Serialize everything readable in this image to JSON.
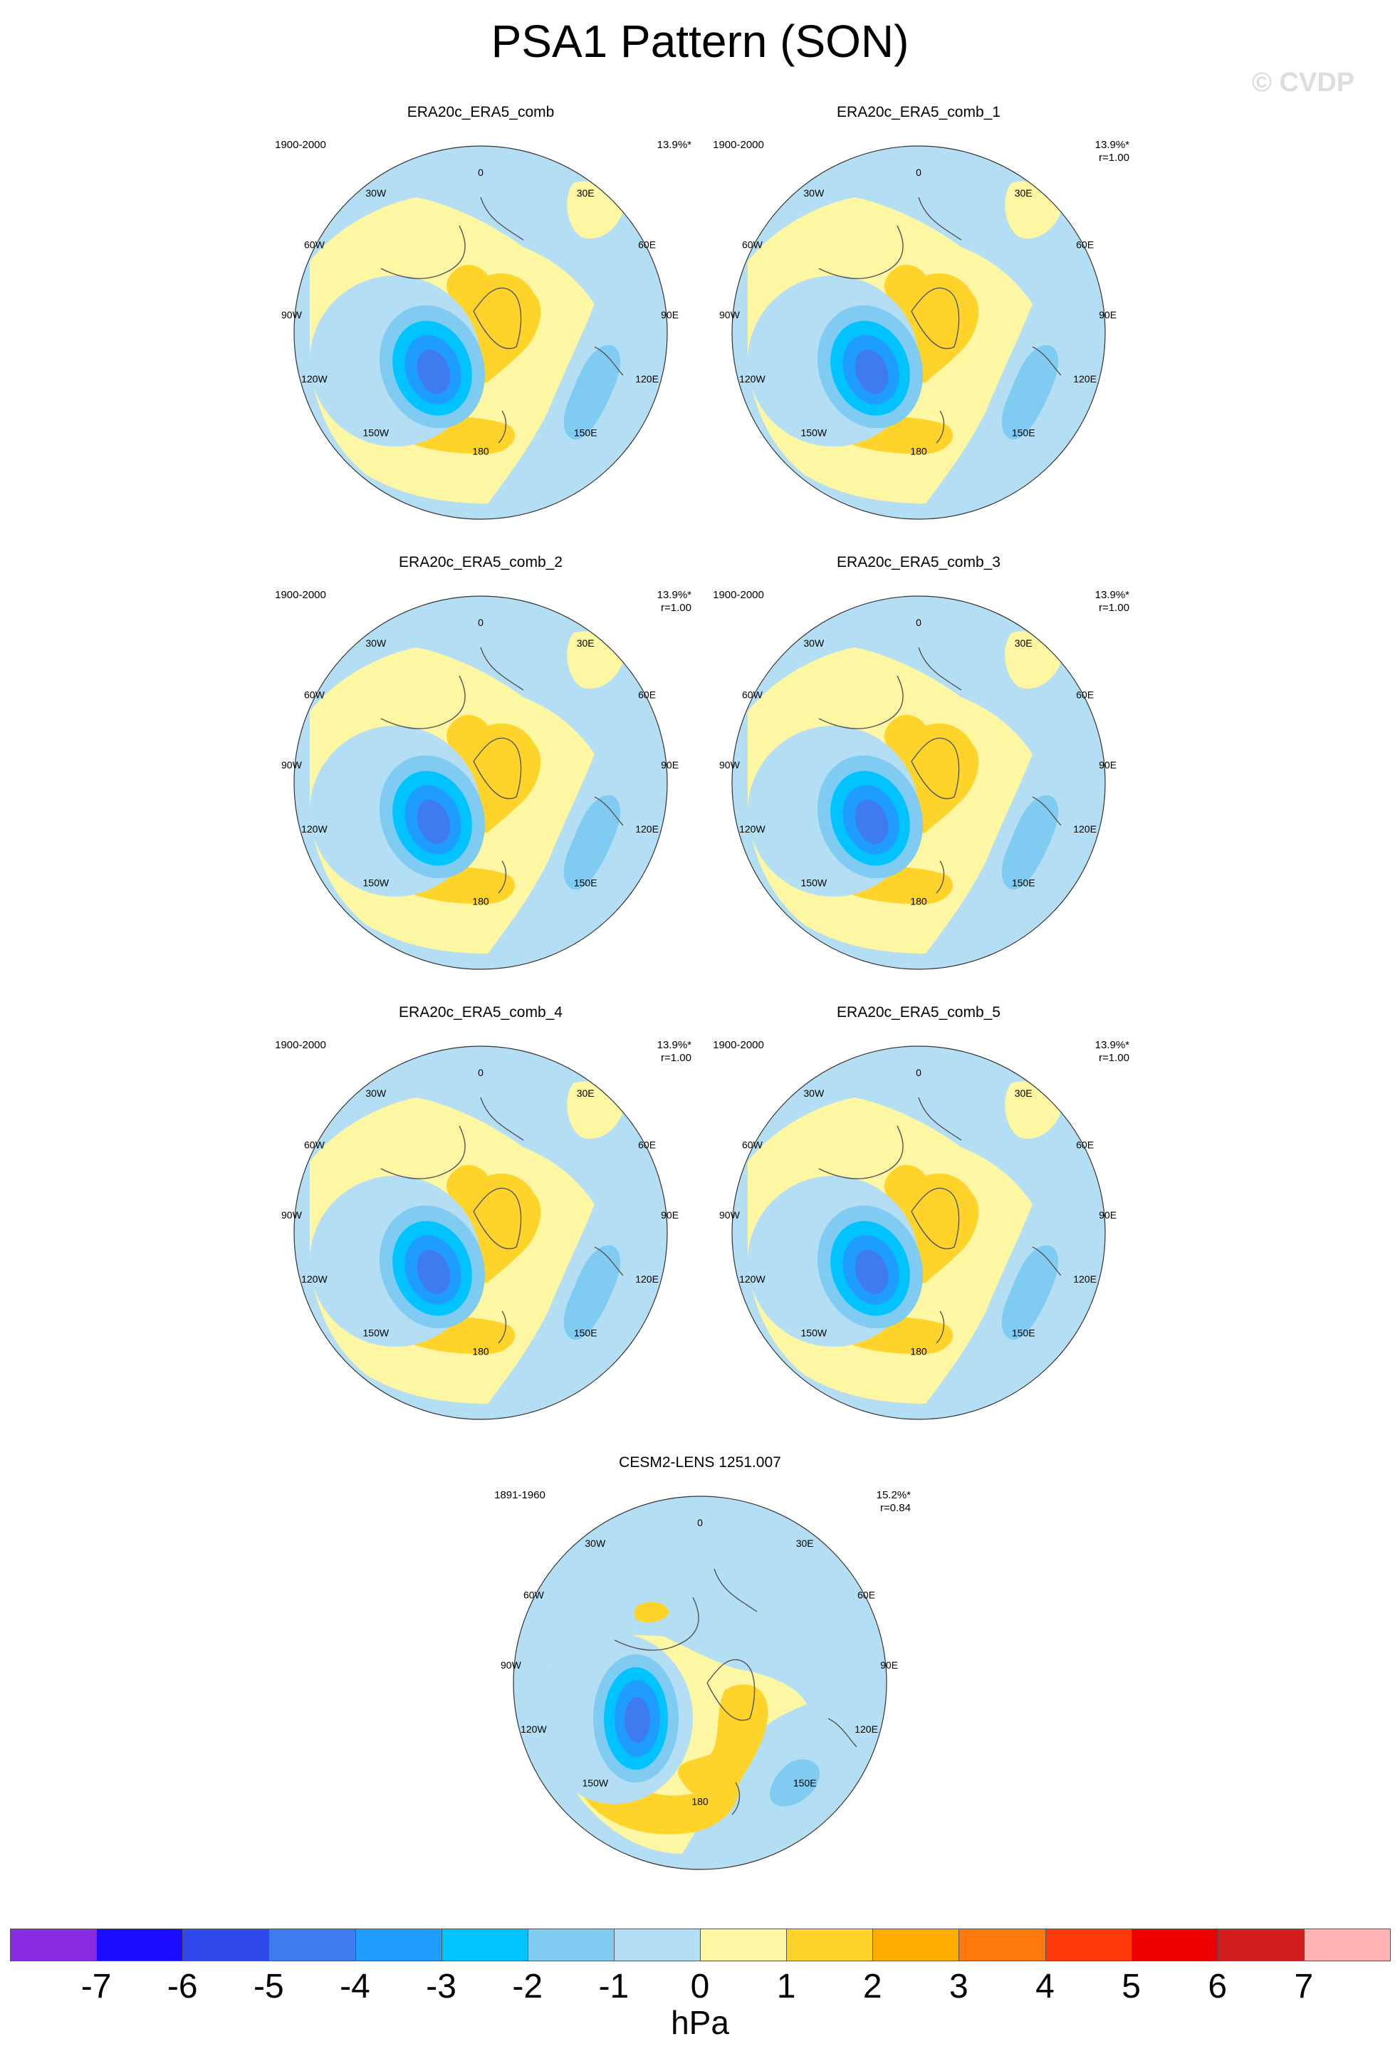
{
  "title": "PSA1 Pattern (SON)",
  "watermark": "© CVDP",
  "lon_labels": [
    "0",
    "30E",
    "60E",
    "90E",
    "120E",
    "150E",
    "180",
    "150W",
    "120W",
    "90W",
    "60W",
    "30W"
  ],
  "colors": {
    "neg_light": "#b4def4",
    "pos_light": "#fdf6a2",
    "coast": "#555555"
  },
  "panels": [
    {
      "title": "ERA20c_ERA5_comb",
      "period": "1900-2000",
      "pct": "13.9%*",
      "r": ""
    },
    {
      "title": "ERA20c_ERA5_comb_1",
      "period": "1900-2000",
      "pct": "13.9%*",
      "r": "r=1.00"
    },
    {
      "title": "ERA20c_ERA5_comb_2",
      "period": "1900-2000",
      "pct": "13.9%*",
      "r": "r=1.00"
    },
    {
      "title": "ERA20c_ERA5_comb_3",
      "period": "1900-2000",
      "pct": "13.9%*",
      "r": "r=1.00"
    },
    {
      "title": "ERA20c_ERA5_comb_4",
      "period": "1900-2000",
      "pct": "13.9%*",
      "r": "r=1.00"
    },
    {
      "title": "ERA20c_ERA5_comb_5",
      "period": "1900-2000",
      "pct": "13.9%*",
      "r": "r=1.00"
    },
    {
      "title": "CESM2-LENS 1251.007",
      "period": "1891-1960",
      "pct": "15.2%*",
      "r": "r=0.84"
    }
  ],
  "colorbar": {
    "units": "hPa",
    "colors": [
      "#8a2be2",
      "#1a0dff",
      "#2f49ea",
      "#3d7bee",
      "#1f9cff",
      "#00c3ff",
      "#7fcbf1",
      "#b4def4",
      "#fdf6a2",
      "#ffd42a",
      "#ffac00",
      "#ff7a0a",
      "#ff3a0a",
      "#ee0000",
      "#d41e1e",
      "#ffb2b2"
    ],
    "ticks": [
      "-7",
      "-6",
      "-5",
      "-4",
      "-3",
      "-2",
      "-1",
      "0",
      "1",
      "2",
      "3",
      "4",
      "5",
      "6",
      "7"
    ]
  }
}
